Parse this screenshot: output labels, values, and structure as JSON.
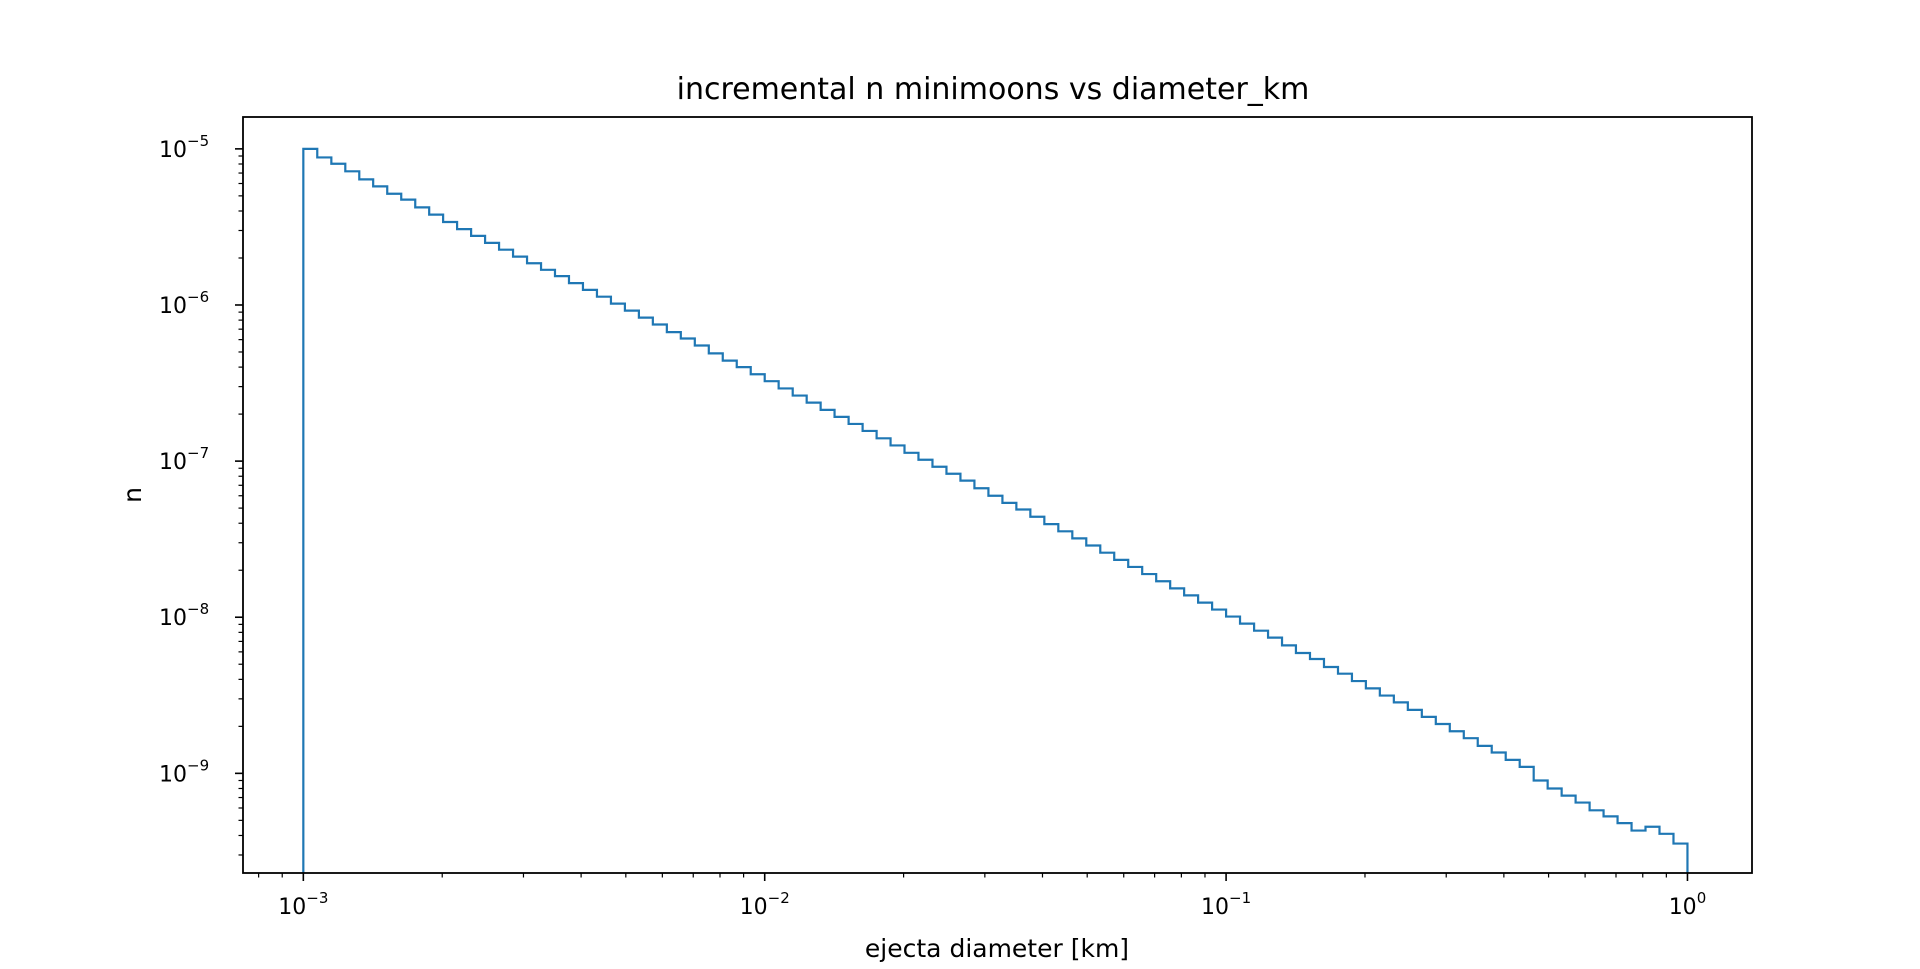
{
  "chart_data": {
    "type": "step",
    "title": "incremental n minimoons vs diameter_km",
    "xlabel": "ejecta diameter [km]",
    "ylabel": "n",
    "xscale": "log",
    "yscale": "log",
    "xlim": [
      0.00074,
      1.38
    ],
    "ylim": [
      2.3e-10,
      1.6e-05
    ],
    "grid": false,
    "legend": "none",
    "line_color": "#1f77b4",
    "x_ticks": [
      {
        "value": 0.001,
        "base": "10",
        "exp": "−3"
      },
      {
        "value": 0.01,
        "base": "10",
        "exp": "−2"
      },
      {
        "value": 0.1,
        "base": "10",
        "exp": "−1"
      },
      {
        "value": 1,
        "base": "10",
        "exp": "0"
      }
    ],
    "y_ticks": [
      {
        "value": 1e-05,
        "base": "10",
        "exp": "−5"
      },
      {
        "value": 1e-06,
        "base": "10",
        "exp": "−6"
      },
      {
        "value": 1e-07,
        "base": "10",
        "exp": "−7"
      },
      {
        "value": 1e-08,
        "base": "10",
        "exp": "−8"
      },
      {
        "value": 1e-09,
        "base": "10",
        "exp": "−9"
      }
    ],
    "series": [
      {
        "bin_edges": [
          0.001,
          0.001072,
          0.00115,
          0.001233,
          0.001322,
          0.001417,
          0.00152,
          0.00163,
          0.001748,
          0.001874,
          0.002009,
          0.002154,
          0.00231,
          0.002477,
          0.002656,
          0.002848,
          0.003054,
          0.003275,
          0.003511,
          0.003765,
          0.004037,
          0.004329,
          0.004642,
          0.004977,
          0.005337,
          0.005722,
          0.006136,
          0.006579,
          0.007055,
          0.007565,
          0.008111,
          0.008697,
          0.009326,
          0.01,
          0.01072,
          0.0115,
          0.01233,
          0.01322,
          0.01417,
          0.0152,
          0.0163,
          0.01748,
          0.01874,
          0.02009,
          0.02154,
          0.0231,
          0.02477,
          0.02656,
          0.02848,
          0.03054,
          0.03275,
          0.03511,
          0.03765,
          0.04037,
          0.04329,
          0.04642,
          0.04977,
          0.05337,
          0.05722,
          0.06136,
          0.06579,
          0.07055,
          0.07565,
          0.08111,
          0.08697,
          0.09326,
          0.1,
          0.1072,
          0.115,
          0.1233,
          0.1322,
          0.1417,
          0.152,
          0.163,
          0.1748,
          0.1874,
          0.2009,
          0.2154,
          0.231,
          0.2477,
          0.2656,
          0.2848,
          0.3054,
          0.3275,
          0.3511,
          0.3765,
          0.4037,
          0.4329,
          0.4642,
          0.4977,
          0.5337,
          0.5722,
          0.6136,
          0.6579,
          0.7055,
          0.7565,
          0.8111,
          0.8697,
          0.9326,
          1.0
        ],
        "values": [
          1e-05,
          8.81e-06,
          8.03e-06,
          7.18e-06,
          6.38e-06,
          5.75e-06,
          5.16e-06,
          4.73e-06,
          4.22e-06,
          3.79e-06,
          3.4e-06,
          3.06e-06,
          2.77e-06,
          2.5e-06,
          2.26e-06,
          2.04e-06,
          1.85e-06,
          1.68e-06,
          1.53e-06,
          1.38e-06,
          1.25e-06,
          1.13e-06,
          1.02e-06,
          9.2e-07,
          8.3e-07,
          7.5e-07,
          6.7e-07,
          6.1e-07,
          5.5e-07,
          4.9e-07,
          4.4e-07,
          4e-07,
          3.6e-07,
          3.25e-07,
          2.92e-07,
          2.63e-07,
          2.37e-07,
          2.13e-07,
          1.92e-07,
          1.73e-07,
          1.56e-07,
          1.4e-07,
          1.26e-07,
          1.13e-07,
          1.02e-07,
          9.2e-08,
          8.3e-08,
          7.5e-08,
          6.7e-08,
          6e-08,
          5.4e-08,
          4.9e-08,
          4.4e-08,
          3.95e-08,
          3.55e-08,
          3.2e-08,
          2.88e-08,
          2.59e-08,
          2.33e-08,
          2.1e-08,
          1.89e-08,
          1.7e-08,
          1.53e-08,
          1.38e-08,
          1.24e-08,
          1.12e-08,
          1.01e-08,
          9.1e-09,
          8.2e-09,
          7.4e-09,
          6.6e-09,
          5.9e-09,
          5.4e-09,
          4.8e-09,
          4.35e-09,
          3.9e-09,
          3.5e-09,
          3.15e-09,
          2.85e-09,
          2.55e-09,
          2.3e-09,
          2.07e-09,
          1.86e-09,
          1.68e-09,
          1.5e-09,
          1.36e-09,
          1.22e-09,
          1.1e-09,
          9e-10,
          8e-10,
          7.2e-10,
          6.5e-10,
          5.8e-10,
          5.3e-10,
          4.8e-10,
          4.3e-10,
          4.55e-10,
          4.1e-10,
          3.55e-10
        ]
      }
    ]
  }
}
